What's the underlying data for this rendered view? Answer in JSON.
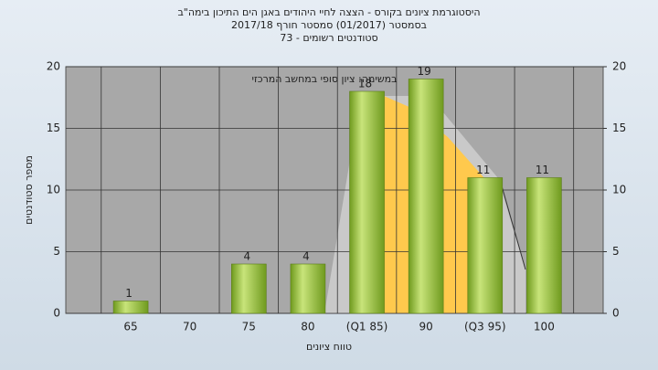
{
  "chart_data": {
    "type": "bar",
    "title": "היסטוגרמת ציונים בקורס - הצצה לחיי היהודים באגן הים התיכון בימה\"ב",
    "subtitle": [
      "בסמסטר  (01/2017)  סמסטר חורף 2017/18",
      "סטודנטים רשומים - 73"
    ],
    "annotation": "במשימה: ציון סופי במחשב המרכזי",
    "x_label": "טווח ציונים",
    "y_label": "מספר סטודנטים",
    "categories": [
      "65",
      "70",
      "75",
      "80",
      "(Q1 85)",
      "90",
      "(Q3 95)",
      "100"
    ],
    "values": [
      1,
      0,
      4,
      4,
      18,
      19,
      11,
      11
    ],
    "color": "#9cc43c",
    "ylim": [
      0,
      20
    ],
    "yticks": [
      0,
      5,
      10,
      15,
      20
    ],
    "y2lim": [
      0,
      20
    ],
    "y2ticks": [
      0,
      5,
      10,
      15,
      20
    ],
    "grid": true
  }
}
